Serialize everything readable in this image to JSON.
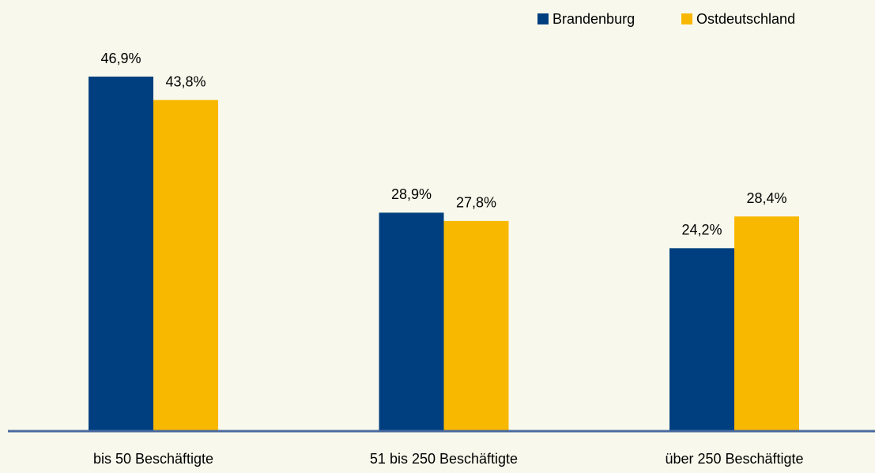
{
  "chart_data": {
    "type": "bar",
    "categories": [
      "bis 50 Beschäftigte",
      "51 bis 250 Beschäftigte",
      "über 250 Beschäftigte"
    ],
    "series": [
      {
        "name": "Brandenburg",
        "color": "#003f7f",
        "values": [
          46.9,
          28.9,
          24.2
        ],
        "value_labels": [
          "46,9%",
          "28,9%",
          "24,2%"
        ]
      },
      {
        "name": "Ostdeutschland",
        "color": "#f9b800",
        "values": [
          43.8,
          27.8,
          28.4
        ],
        "value_labels": [
          "43,8%",
          "27,8%",
          "28,4%"
        ]
      }
    ],
    "legend": "top-right"
  }
}
